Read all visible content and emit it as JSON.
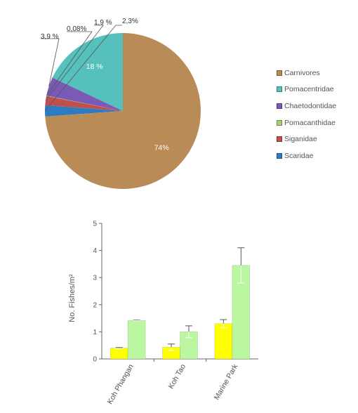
{
  "chart_data": [
    {
      "type": "pie",
      "slices": [
        {
          "label": "Carnivores",
          "value": 74,
          "data_label": "74%",
          "color": "#b98c57",
          "label_color": "#ffffff"
        },
        {
          "label": "Pomacentridae",
          "value": 18,
          "data_label": "18 %",
          "color": "#56c0bd",
          "label_color": "#ffffff"
        },
        {
          "label": "Chaetodontidae",
          "value": 3.9,
          "data_label": "3,9 %",
          "color": "#7b5ab7",
          "label_color": "#333333"
        },
        {
          "label": "Pomacanthidae",
          "value": 0.08,
          "data_label": "0,08%",
          "color": "#a6cf7a",
          "label_color": "#333333"
        },
        {
          "label": "Siganidae",
          "value": 1.9,
          "data_label": "1,9 %",
          "color": "#c0504d",
          "label_color": "#333333"
        },
        {
          "label": "Scaridae",
          "value": 2.3,
          "data_label": "2,3%",
          "color": "#2f7bbf",
          "label_color": "#333333"
        }
      ],
      "legend_position": "right"
    },
    {
      "type": "bar",
      "categories": [
        "Koh Phangan",
        "Koh Tao",
        "Marine Park"
      ],
      "series": [
        {
          "color": "#ffff00",
          "values": [
            0.4,
            0.43,
            1.3
          ],
          "errors": [
            0.02,
            0.12,
            0.15
          ]
        },
        {
          "color": "#bbf7a0",
          "values": [
            1.42,
            1.0,
            3.45
          ],
          "errors": [
            0.01,
            0.22,
            0.65
          ]
        }
      ],
      "ylabel": "No. Fishes/m²",
      "ylim": [
        0,
        5
      ],
      "yticks": [
        "0",
        "1",
        "2",
        "3",
        "4",
        "5"
      ],
      "grid": false
    }
  ]
}
